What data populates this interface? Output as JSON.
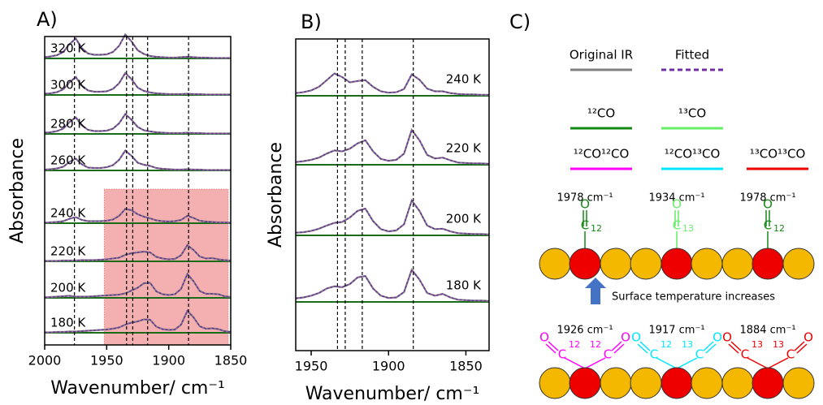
{
  "chart_data": [
    {
      "type": "line",
      "panel": "A)",
      "ylabel": "Absorbance",
      "xlabel": "Wavenumber/ cm⁻¹",
      "x": [
        2000,
        1995,
        1990,
        1985,
        1980,
        1975,
        1970,
        1965,
        1960,
        1955,
        1950,
        1945,
        1940,
        1935,
        1930,
        1925,
        1920,
        1915,
        1910,
        1905,
        1900,
        1895,
        1890,
        1885,
        1880,
        1875,
        1870,
        1865,
        1860,
        1855,
        1850
      ],
      "xlim": [
        2000,
        1850
      ],
      "xticks": [
        2000,
        1950,
        1900,
        1850
      ],
      "color": "#7f7f7f",
      "vlines": [
        1976,
        1934,
        1929,
        1917,
        1884
      ],
      "highlight": [
        1952,
        1852
      ],
      "highlight_color": "#f4b0b0",
      "series": [
        {
          "name": "320 K",
          "values": [
            0.03,
            0.05,
            0.08,
            0.16,
            0.35,
            0.49,
            0.25,
            0.12,
            0.09,
            0.09,
            0.1,
            0.16,
            0.31,
            0.59,
            0.42,
            0.2,
            0.11,
            0.06,
            0.04,
            0.03,
            0.02,
            0.02,
            0.03,
            0.04,
            0.03,
            0.02,
            0.02,
            0.01,
            0.01,
            0.01,
            0.01
          ]
        },
        {
          "name": "300 K",
          "values": [
            0.03,
            0.04,
            0.07,
            0.14,
            0.31,
            0.44,
            0.23,
            0.11,
            0.08,
            0.08,
            0.09,
            0.15,
            0.29,
            0.54,
            0.39,
            0.18,
            0.1,
            0.06,
            0.04,
            0.03,
            0.02,
            0.02,
            0.02,
            0.03,
            0.02,
            0.02,
            0.01,
            0.01,
            0.01,
            0.01,
            0.01
          ]
        },
        {
          "name": "280 K",
          "values": [
            0.03,
            0.04,
            0.07,
            0.13,
            0.29,
            0.41,
            0.21,
            0.1,
            0.07,
            0.07,
            0.08,
            0.13,
            0.26,
            0.49,
            0.35,
            0.17,
            0.09,
            0.06,
            0.04,
            0.03,
            0.02,
            0.02,
            0.02,
            0.03,
            0.02,
            0.02,
            0.01,
            0.01,
            0.01,
            0.01,
            0.01
          ]
        },
        {
          "name": "260 K",
          "values": [
            0.02,
            0.03,
            0.05,
            0.09,
            0.21,
            0.29,
            0.15,
            0.07,
            0.06,
            0.06,
            0.08,
            0.13,
            0.26,
            0.49,
            0.36,
            0.19,
            0.14,
            0.11,
            0.06,
            0.04,
            0.03,
            0.02,
            0.02,
            0.03,
            0.02,
            0.02,
            0.01,
            0.01,
            0.01,
            0.01,
            0.01
          ]
        },
        {
          "name": "240 K",
          "values": [
            0.01,
            0.02,
            0.03,
            0.05,
            0.11,
            0.15,
            0.08,
            0.05,
            0.05,
            0.05,
            0.06,
            0.09,
            0.18,
            0.35,
            0.32,
            0.22,
            0.16,
            0.12,
            0.07,
            0.05,
            0.04,
            0.05,
            0.08,
            0.18,
            0.13,
            0.06,
            0.04,
            0.03,
            0.02,
            0.02,
            0.01
          ]
        },
        {
          "name": "220 K",
          "values": [
            0.01,
            0.01,
            0.01,
            0.02,
            0.02,
            0.02,
            0.03,
            0.03,
            0.03,
            0.04,
            0.05,
            0.07,
            0.09,
            0.16,
            0.2,
            0.22,
            0.24,
            0.22,
            0.11,
            0.07,
            0.05,
            0.06,
            0.15,
            0.4,
            0.28,
            0.12,
            0.07,
            0.08,
            0.05,
            0.03,
            0.02
          ]
        },
        {
          "name": "200 K",
          "values": [
            0.01,
            0.02,
            0.03,
            0.04,
            0.05,
            0.03,
            0.03,
            0.03,
            0.04,
            0.05,
            0.06,
            0.07,
            0.08,
            0.11,
            0.18,
            0.25,
            0.36,
            0.37,
            0.16,
            0.09,
            0.07,
            0.09,
            0.22,
            0.59,
            0.41,
            0.17,
            0.1,
            0.1,
            0.09,
            0.04,
            0.02
          ]
        },
        {
          "name": "180 K",
          "values": [
            0.01,
            0.01,
            0.02,
            0.02,
            0.03,
            0.03,
            0.04,
            0.05,
            0.06,
            0.07,
            0.08,
            0.1,
            0.13,
            0.2,
            0.25,
            0.28,
            0.33,
            0.32,
            0.15,
            0.09,
            0.07,
            0.08,
            0.2,
            0.54,
            0.38,
            0.16,
            0.1,
            0.11,
            0.09,
            0.04,
            0.02
          ]
        }
      ]
    },
    {
      "type": "line",
      "panel": "B)",
      "ylabel": "Absorbance",
      "xlabel": "Wavenumber/ cm⁻¹",
      "x": [
        1960,
        1955,
        1950,
        1945,
        1940,
        1935,
        1930,
        1925,
        1920,
        1915,
        1910,
        1905,
        1900,
        1895,
        1890,
        1885,
        1880,
        1875,
        1870,
        1865,
        1860,
        1855,
        1850,
        1845,
        1840,
        1835
      ],
      "xlim": [
        1960,
        1835
      ],
      "xticks": [
        1950,
        1900,
        1850
      ],
      "color": "#7f7f7f",
      "vlines": [
        1933,
        1928,
        1917,
        1884
      ],
      "series": [
        {
          "name": "240 K",
          "values": [
            0.06,
            0.08,
            0.12,
            0.2,
            0.35,
            0.5,
            0.42,
            0.3,
            0.33,
            0.35,
            0.2,
            0.1,
            0.07,
            0.08,
            0.15,
            0.48,
            0.36,
            0.16,
            0.1,
            0.1,
            0.06,
            0.04,
            0.03,
            0.03,
            0.02,
            0.02
          ]
        },
        {
          "name": "220 K",
          "values": [
            0.06,
            0.08,
            0.11,
            0.16,
            0.25,
            0.32,
            0.3,
            0.36,
            0.48,
            0.55,
            0.3,
            0.13,
            0.09,
            0.11,
            0.25,
            0.78,
            0.55,
            0.22,
            0.14,
            0.16,
            0.1,
            0.05,
            0.04,
            0.03,
            0.03,
            0.02
          ]
        },
        {
          "name": "200 K",
          "values": [
            0.06,
            0.07,
            0.1,
            0.15,
            0.22,
            0.28,
            0.3,
            0.4,
            0.55,
            0.6,
            0.32,
            0.14,
            0.09,
            0.11,
            0.25,
            0.78,
            0.55,
            0.22,
            0.14,
            0.15,
            0.09,
            0.05,
            0.04,
            0.03,
            0.03,
            0.02
          ]
        },
        {
          "name": "180 K",
          "values": [
            0.08,
            0.1,
            0.14,
            0.2,
            0.3,
            0.35,
            0.33,
            0.4,
            0.55,
            0.58,
            0.3,
            0.14,
            0.09,
            0.1,
            0.22,
            0.72,
            0.5,
            0.2,
            0.14,
            0.18,
            0.1,
            0.05,
            0.04,
            0.03,
            0.03,
            0.02
          ]
        }
      ]
    }
  ],
  "diagram": {
    "panel": "C)",
    "oxygen": "O",
    "carbon": "C",
    "legend": [
      {
        "name": "Original IR",
        "color": "#808080",
        "dashed": false
      },
      {
        "name": "Fitted",
        "color": "#7030a0",
        "dashed": true
      },
      {
        "name": "¹²CO",
        "color": "#148a14",
        "dashed": false
      },
      {
        "name": "¹³CO",
        "color": "#66ee66",
        "dashed": false
      },
      {
        "name": "¹²CO¹²CO",
        "color": "#ff00ff",
        "dashed": false
      },
      {
        "name": "¹²CO¹³CO",
        "color": "#00e5ff",
        "dashed": false
      },
      {
        "name": "¹³CO¹³CO",
        "color": "#ee0000",
        "dashed": false
      }
    ],
    "top": [
      {
        "label": "1978 cm⁻¹",
        "isotope": "12",
        "legend": 2
      },
      {
        "label": "1934 cm⁻¹",
        "isotope": "13",
        "legend": 3
      },
      {
        "label": "1978 cm⁻¹",
        "isotope": "12",
        "legend": 2
      }
    ],
    "arrow_label": "Surface temperature increases",
    "bottom": [
      {
        "label": "1926 cm⁻¹",
        "isotopes": [
          "12",
          "12"
        ],
        "legend": 4
      },
      {
        "label": "1917 cm⁻¹",
        "isotopes": [
          "12",
          "13"
        ],
        "legend": 5
      },
      {
        "label": "1884 cm⁻¹",
        "isotopes": [
          "13",
          "13"
        ],
        "legend": 6
      }
    ]
  }
}
